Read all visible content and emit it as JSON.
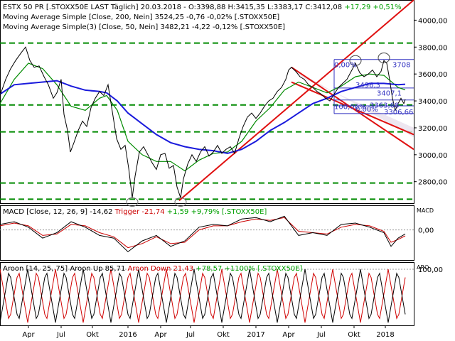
{
  "header": {
    "line1_prefix": "ESTX 50 PR [.STOXX50E LAST Täglich] 20.03.2018 - O:3398,88 H:3415,35 L:3383,17 C:3412,08",
    "line1_change": "+17,29 +0,51%",
    "line2": "Moving Average Simple [Close, 200, Nein]",
    "line2_value": "3524,25 -0,76 -0,02% [.STOXX50E]",
    "line3": "Moving Average Simple(3) [Close, 50, Nein]",
    "line3_value": "3482,21 -4,22 -0,12% [.STOXX50E]"
  },
  "macd_header": {
    "prefix": "MACD [Close, 12, 26, 9] -14,62",
    "trigger": "Trigger -21,74",
    "change": "+1,59 +9,79% [.STOXX50E]",
    "axis_title": "MACD"
  },
  "aroon_header": {
    "prefix": "Aroon [14, 25, 75] Aroon Up 85,71",
    "down": "Aroon Down 21,43",
    "change": "+78,57 +1100% [.STOXX50E]",
    "axis_title": "ARO"
  },
  "fib_labels": [
    "0,00%",
    "100,00%",
    "0,00%",
    "3363,68",
    "3306,66",
    "3708",
    "3496,3",
    "3407,1"
  ],
  "colors": {
    "price": "#000000",
    "sma200": "#1a1adc",
    "sma50": "#008a00",
    "trend": "#e01010",
    "support": "#008a00",
    "fib": "#3030c0",
    "trigger": "#cc0000",
    "positive": "#00a000",
    "aroon_down": "#d00000"
  },
  "chart_data": [
    {
      "type": "line",
      "name": "price-panel",
      "y_ticks": [
        "4000,00",
        "3800,00",
        "3600,00",
        "3400,00",
        "3200,00",
        "3000,00",
        "2800,00"
      ],
      "ylim": [
        2640,
        4150
      ],
      "x_ticks": [
        "Apr",
        "Jul",
        "Okt",
        "2016",
        "Apr",
        "Jul",
        "Okt",
        "2017",
        "Apr",
        "Jul",
        "Okt",
        "2018"
      ],
      "support_levels": [
        3830,
        3370,
        3170,
        2790,
        2670
      ],
      "series": [
        {
          "name": "ESTX 50 PR",
          "points": [
            [
              0,
              3440
            ],
            [
              8,
              3560
            ],
            [
              15,
              3640
            ],
            [
              22,
              3700
            ],
            [
              30,
              3760
            ],
            [
              36,
              3800
            ],
            [
              42,
              3700
            ],
            [
              48,
              3650
            ],
            [
              55,
              3660
            ],
            [
              62,
              3580
            ],
            [
              68,
              3520
            ],
            [
              75,
              3420
            ],
            [
              80,
              3460
            ],
            [
              86,
              3560
            ],
            [
              90,
              3300
            ],
            [
              95,
              3180
            ],
            [
              99,
              3020
            ],
            [
              104,
              3090
            ],
            [
              110,
              3180
            ],
            [
              116,
              3250
            ],
            [
              122,
              3210
            ],
            [
              128,
              3350
            ],
            [
              134,
              3420
            ],
            [
              140,
              3470
            ],
            [
              146,
              3440
            ],
            [
              152,
              3520
            ],
            [
              158,
              3320
            ],
            [
              164,
              3120
            ],
            [
              170,
              3040
            ],
            [
              176,
              3070
            ],
            [
              181,
              2900
            ],
            [
              186,
              2680
            ],
            [
              190,
              2840
            ],
            [
              196,
              3020
            ],
            [
              202,
              3060
            ],
            [
              208,
              3000
            ],
            [
              214,
              2940
            ],
            [
              220,
              2890
            ],
            [
              226,
              3000
            ],
            [
              232,
              3010
            ],
            [
              238,
              2900
            ],
            [
              244,
              2920
            ],
            [
              249,
              2760
            ],
            [
              254,
              2680
            ],
            [
              258,
              2820
            ],
            [
              264,
              2930
            ],
            [
              270,
              3000
            ],
            [
              276,
              2950
            ],
            [
              282,
              3020
            ],
            [
              288,
              3060
            ],
            [
              294,
              2990
            ],
            [
              300,
              3020
            ],
            [
              306,
              3070
            ],
            [
              312,
              3010
            ],
            [
              318,
              3040
            ],
            [
              324,
              3060
            ],
            [
              330,
              3010
            ],
            [
              336,
              3120
            ],
            [
              342,
              3210
            ],
            [
              348,
              3280
            ],
            [
              354,
              3310
            ],
            [
              360,
              3270
            ],
            [
              366,
              3310
            ],
            [
              372,
              3360
            ],
            [
              378,
              3400
            ],
            [
              384,
              3420
            ],
            [
              390,
              3470
            ],
            [
              396,
              3500
            ],
            [
              402,
              3560
            ],
            [
              406,
              3630
            ],
            [
              410,
              3650
            ],
            [
              416,
              3620
            ],
            [
              422,
              3580
            ],
            [
              428,
              3560
            ],
            [
              434,
              3520
            ],
            [
              440,
              3500
            ],
            [
              446,
              3470
            ],
            [
              452,
              3450
            ],
            [
              458,
              3420
            ],
            [
              464,
              3400
            ],
            [
              470,
              3450
            ],
            [
              476,
              3500
            ],
            [
              482,
              3530
            ],
            [
              488,
              3560
            ],
            [
              494,
              3620
            ],
            [
              500,
              3680
            ],
            [
              506,
              3610
            ],
            [
              512,
              3580
            ],
            [
              518,
              3600
            ],
            [
              524,
              3630
            ],
            [
              530,
              3580
            ],
            [
              536,
              3620
            ],
            [
              540,
              3700
            ],
            [
              544,
              3680
            ],
            [
              548,
              3560
            ],
            [
              552,
              3420
            ],
            [
              556,
              3330
            ],
            [
              560,
              3380
            ],
            [
              564,
              3420
            ],
            [
              568,
              3380
            ],
            [
              570,
              3412
            ]
          ]
        },
        {
          "name": "Moving Average Simple [Close, 200, Nein]",
          "points": [
            [
              0,
              3450
            ],
            [
              20,
              3520
            ],
            [
              40,
              3530
            ],
            [
              60,
              3540
            ],
            [
              80,
              3550
            ],
            [
              100,
              3510
            ],
            [
              120,
              3480
            ],
            [
              140,
              3470
            ],
            [
              150,
              3460
            ],
            [
              165,
              3400
            ],
            [
              180,
              3310
            ],
            [
              200,
              3230
            ],
            [
              220,
              3150
            ],
            [
              240,
              3090
            ],
            [
              260,
              3060
            ],
            [
              280,
              3040
            ],
            [
              300,
              3030
            ],
            [
              320,
              3010
            ],
            [
              340,
              3040
            ],
            [
              360,
              3100
            ],
            [
              380,
              3180
            ],
            [
              400,
              3240
            ],
            [
              420,
              3310
            ],
            [
              440,
              3380
            ],
            [
              460,
              3420
            ],
            [
              480,
              3470
            ],
            [
              500,
              3500
            ],
            [
              520,
              3530
            ],
            [
              540,
              3530
            ],
            [
              560,
              3520
            ],
            [
              570,
              3524
            ]
          ]
        },
        {
          "name": "Moving Average Simple(3) [Close, 50, Nein]",
          "points": [
            [
              0,
              3380
            ],
            [
              20,
              3560
            ],
            [
              40,
              3680
            ],
            [
              60,
              3640
            ],
            [
              80,
              3520
            ],
            [
              100,
              3360
            ],
            [
              120,
              3330
            ],
            [
              140,
              3420
            ],
            [
              150,
              3440
            ],
            [
              165,
              3330
            ],
            [
              180,
              3100
            ],
            [
              200,
              3000
            ],
            [
              220,
              2950
            ],
            [
              240,
              2950
            ],
            [
              260,
              2880
            ],
            [
              280,
              2960
            ],
            [
              300,
              3010
            ],
            [
              320,
              3020
            ],
            [
              340,
              3100
            ],
            [
              360,
              3250
            ],
            [
              380,
              3350
            ],
            [
              400,
              3480
            ],
            [
              420,
              3540
            ],
            [
              440,
              3500
            ],
            [
              460,
              3460
            ],
            [
              480,
              3510
            ],
            [
              500,
              3580
            ],
            [
              520,
              3600
            ],
            [
              540,
              3590
            ],
            [
              560,
              3500
            ],
            [
              570,
              3482
            ]
          ]
        }
      ]
    },
    {
      "type": "line",
      "name": "macd-panel",
      "y_ticks": [
        "0,00"
      ],
      "ylim": [
        -110,
        90
      ],
      "series": [
        {
          "name": "MACD",
          "points": [
            [
              0,
              20
            ],
            [
              20,
              30
            ],
            [
              40,
              10
            ],
            [
              60,
              -30
            ],
            [
              80,
              -10
            ],
            [
              100,
              30
            ],
            [
              120,
              10
            ],
            [
              140,
              -20
            ],
            [
              160,
              -30
            ],
            [
              180,
              -80
            ],
            [
              200,
              -40
            ],
            [
              220,
              -20
            ],
            [
              240,
              -60
            ],
            [
              260,
              -40
            ],
            [
              280,
              10
            ],
            [
              300,
              20
            ],
            [
              320,
              15
            ],
            [
              340,
              40
            ],
            [
              360,
              45
            ],
            [
              380,
              30
            ],
            [
              400,
              50
            ],
            [
              420,
              -20
            ],
            [
              440,
              -10
            ],
            [
              460,
              -20
            ],
            [
              480,
              20
            ],
            [
              500,
              25
            ],
            [
              520,
              10
            ],
            [
              540,
              -10
            ],
            [
              550,
              -60
            ],
            [
              560,
              -30
            ],
            [
              570,
              -14.62
            ]
          ]
        },
        {
          "name": "Trigger",
          "points": [
            [
              0,
              15
            ],
            [
              20,
              25
            ],
            [
              40,
              15
            ],
            [
              60,
              -20
            ],
            [
              80,
              -15
            ],
            [
              100,
              20
            ],
            [
              120,
              15
            ],
            [
              140,
              -10
            ],
            [
              160,
              -25
            ],
            [
              180,
              -65
            ],
            [
              200,
              -50
            ],
            [
              220,
              -25
            ],
            [
              240,
              -50
            ],
            [
              260,
              -45
            ],
            [
              280,
              0
            ],
            [
              300,
              15
            ],
            [
              320,
              15
            ],
            [
              340,
              30
            ],
            [
              360,
              40
            ],
            [
              380,
              35
            ],
            [
              400,
              45
            ],
            [
              420,
              -5
            ],
            [
              440,
              -10
            ],
            [
              460,
              -15
            ],
            [
              480,
              10
            ],
            [
              500,
              20
            ],
            [
              520,
              15
            ],
            [
              540,
              -5
            ],
            [
              550,
              -45
            ],
            [
              560,
              -35
            ],
            [
              570,
              -21.74
            ]
          ]
        }
      ]
    },
    {
      "type": "line",
      "name": "aroon-panel",
      "y_ticks": [
        "100,00"
      ],
      "ylim": [
        0,
        100
      ],
      "series": [
        {
          "name": "Aroon Up",
          "last": 85.71
        },
        {
          "name": "Aroon Down",
          "last": 21.43
        }
      ]
    }
  ]
}
